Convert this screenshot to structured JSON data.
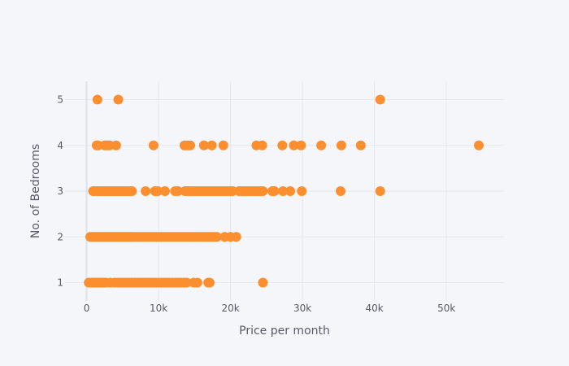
{
  "chart_data": {
    "type": "scatter",
    "title": "",
    "xlabel": "Price per month",
    "ylabel": "No. of Bedrooms",
    "xlim": [
      -3000,
      58000
    ],
    "ylim": [
      0.6,
      5.4
    ],
    "grid": true,
    "legend": "none",
    "marker_color": "#fb8f2f",
    "background_color": "#f5f6fa",
    "gridline_color": "#e4e7ef",
    "x_ticks": [
      {
        "value": 0,
        "label": "0"
      },
      {
        "value": 10000,
        "label": "10k"
      },
      {
        "value": 20000,
        "label": "20k"
      },
      {
        "value": 30000,
        "label": "30k"
      },
      {
        "value": 40000,
        "label": "40k"
      },
      {
        "value": 50000,
        "label": "50k"
      }
    ],
    "y_ticks": [
      {
        "value": 1,
        "label": "1"
      },
      {
        "value": 2,
        "label": "2"
      },
      {
        "value": 3,
        "label": "3"
      },
      {
        "value": 4,
        "label": "4"
      },
      {
        "value": 5,
        "label": "5"
      }
    ],
    "series": [
      {
        "points": [
          [
            300,
            1
          ],
          [
            500,
            1
          ],
          [
            700,
            1
          ],
          [
            900,
            1
          ],
          [
            1100,
            1
          ],
          [
            1300,
            1
          ],
          [
            1500,
            1
          ],
          [
            1700,
            1
          ],
          [
            1900,
            1
          ],
          [
            2100,
            1
          ],
          [
            2300,
            1
          ],
          [
            2500,
            1
          ],
          [
            2700,
            1
          ],
          [
            3300,
            1
          ],
          [
            3900,
            1
          ],
          [
            4300,
            1
          ],
          [
            4700,
            1
          ],
          [
            5100,
            1
          ],
          [
            5500,
            1
          ],
          [
            5900,
            1
          ],
          [
            6300,
            1
          ],
          [
            6700,
            1
          ],
          [
            7100,
            1
          ],
          [
            7500,
            1
          ],
          [
            7900,
            1
          ],
          [
            8300,
            1
          ],
          [
            8700,
            1
          ],
          [
            9100,
            1
          ],
          [
            9500,
            1
          ],
          [
            9900,
            1
          ],
          [
            10300,
            1
          ],
          [
            10700,
            1
          ],
          [
            11100,
            1
          ],
          [
            11500,
            1
          ],
          [
            11900,
            1
          ],
          [
            12300,
            1
          ],
          [
            12700,
            1
          ],
          [
            13100,
            1
          ],
          [
            13500,
            1
          ],
          [
            13900,
            1
          ],
          [
            14900,
            1
          ],
          [
            15400,
            1
          ],
          [
            16900,
            1
          ],
          [
            17100,
            1
          ],
          [
            24500,
            1
          ],
          [
            500,
            2
          ],
          [
            700,
            2
          ],
          [
            900,
            2
          ],
          [
            1100,
            2
          ],
          [
            1300,
            2
          ],
          [
            1500,
            2
          ],
          [
            1700,
            2
          ],
          [
            1900,
            2
          ],
          [
            2100,
            2
          ],
          [
            2300,
            2
          ],
          [
            2500,
            2
          ],
          [
            2700,
            2
          ],
          [
            2900,
            2
          ],
          [
            3100,
            2
          ],
          [
            3300,
            2
          ],
          [
            3500,
            2
          ],
          [
            3700,
            2
          ],
          [
            3900,
            2
          ],
          [
            4100,
            2
          ],
          [
            4300,
            2
          ],
          [
            4500,
            2
          ],
          [
            4700,
            2
          ],
          [
            4900,
            2
          ],
          [
            5100,
            2
          ],
          [
            5300,
            2
          ],
          [
            5500,
            2
          ],
          [
            5700,
            2
          ],
          [
            5900,
            2
          ],
          [
            6100,
            2
          ],
          [
            6300,
            2
          ],
          [
            6500,
            2
          ],
          [
            6700,
            2
          ],
          [
            7000,
            2
          ],
          [
            7300,
            2
          ],
          [
            7600,
            2
          ],
          [
            7900,
            2
          ],
          [
            8200,
            2
          ],
          [
            8500,
            2
          ],
          [
            8800,
            2
          ],
          [
            9100,
            2
          ],
          [
            9400,
            2
          ],
          [
            9700,
            2
          ],
          [
            10000,
            2
          ],
          [
            10300,
            2
          ],
          [
            10600,
            2
          ],
          [
            10900,
            2
          ],
          [
            11200,
            2
          ],
          [
            11500,
            2
          ],
          [
            11800,
            2
          ],
          [
            12100,
            2
          ],
          [
            12400,
            2
          ],
          [
            12700,
            2
          ],
          [
            13000,
            2
          ],
          [
            13300,
            2
          ],
          [
            13600,
            2
          ],
          [
            13900,
            2
          ],
          [
            14200,
            2
          ],
          [
            14500,
            2
          ],
          [
            14800,
            2
          ],
          [
            15100,
            2
          ],
          [
            15400,
            2
          ],
          [
            15700,
            2
          ],
          [
            16000,
            2
          ],
          [
            16300,
            2
          ],
          [
            16600,
            2
          ],
          [
            16900,
            2
          ],
          [
            17200,
            2
          ],
          [
            17500,
            2
          ],
          [
            17800,
            2
          ],
          [
            18100,
            2
          ],
          [
            19200,
            2
          ],
          [
            20000,
            2
          ],
          [
            20800,
            2
          ],
          [
            900,
            3
          ],
          [
            1100,
            3
          ],
          [
            1300,
            3
          ],
          [
            1500,
            3
          ],
          [
            1700,
            3
          ],
          [
            1900,
            3
          ],
          [
            2100,
            3
          ],
          [
            2300,
            3
          ],
          [
            2500,
            3
          ],
          [
            2700,
            3
          ],
          [
            2900,
            3
          ],
          [
            3100,
            3
          ],
          [
            3300,
            3
          ],
          [
            3500,
            3
          ],
          [
            3700,
            3
          ],
          [
            3900,
            3
          ],
          [
            4100,
            3
          ],
          [
            4300,
            3
          ],
          [
            4500,
            3
          ],
          [
            4700,
            3
          ],
          [
            4900,
            3
          ],
          [
            5100,
            3
          ],
          [
            5300,
            3
          ],
          [
            5500,
            3
          ],
          [
            5700,
            3
          ],
          [
            5900,
            3
          ],
          [
            6100,
            3
          ],
          [
            6300,
            3
          ],
          [
            8200,
            3
          ],
          [
            9500,
            3
          ],
          [
            9900,
            3
          ],
          [
            10900,
            3
          ],
          [
            12300,
            3
          ],
          [
            12700,
            3
          ],
          [
            13700,
            3
          ],
          [
            14000,
            3
          ],
          [
            14300,
            3
          ],
          [
            14600,
            3
          ],
          [
            14900,
            3
          ],
          [
            15200,
            3
          ],
          [
            15500,
            3
          ],
          [
            15800,
            3
          ],
          [
            16100,
            3
          ],
          [
            16400,
            3
          ],
          [
            16700,
            3
          ],
          [
            17000,
            3
          ],
          [
            17300,
            3
          ],
          [
            17600,
            3
          ],
          [
            17900,
            3
          ],
          [
            18200,
            3
          ],
          [
            18500,
            3
          ],
          [
            18800,
            3
          ],
          [
            19100,
            3
          ],
          [
            19400,
            3
          ],
          [
            19700,
            3
          ],
          [
            20000,
            3
          ],
          [
            20300,
            3
          ],
          [
            21200,
            3
          ],
          [
            21500,
            3
          ],
          [
            21800,
            3
          ],
          [
            22100,
            3
          ],
          [
            22400,
            3
          ],
          [
            22700,
            3
          ],
          [
            23000,
            3
          ],
          [
            23300,
            3
          ],
          [
            23600,
            3
          ],
          [
            23900,
            3
          ],
          [
            24200,
            3
          ],
          [
            24500,
            3
          ],
          [
            25800,
            3
          ],
          [
            26100,
            3
          ],
          [
            27300,
            3
          ],
          [
            28300,
            3
          ],
          [
            29900,
            3
          ],
          [
            35300,
            3
          ],
          [
            40800,
            3
          ],
          [
            1400,
            4
          ],
          [
            1600,
            4
          ],
          [
            2500,
            4
          ],
          [
            2700,
            4
          ],
          [
            3000,
            4
          ],
          [
            3200,
            4
          ],
          [
            4100,
            4
          ],
          [
            9300,
            4
          ],
          [
            13600,
            4
          ],
          [
            14000,
            4
          ],
          [
            14400,
            4
          ],
          [
            16300,
            4
          ],
          [
            17400,
            4
          ],
          [
            19000,
            4
          ],
          [
            23600,
            4
          ],
          [
            24400,
            4
          ],
          [
            27200,
            4
          ],
          [
            28800,
            4
          ],
          [
            29800,
            4
          ],
          [
            32600,
            4
          ],
          [
            35400,
            4
          ],
          [
            38100,
            4
          ],
          [
            54500,
            4
          ],
          [
            1500,
            5
          ],
          [
            4400,
            5
          ],
          [
            40800,
            5
          ]
        ]
      }
    ]
  }
}
